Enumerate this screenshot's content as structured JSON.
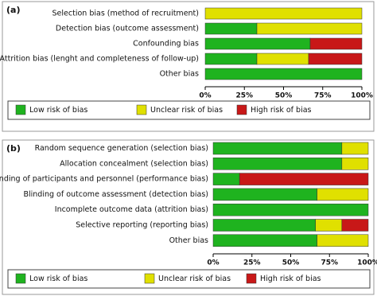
{
  "chart_data": [
    {
      "type": "bar",
      "orientation": "horizontal",
      "stacked": true,
      "label": "(a)",
      "categories": [
        "Selection bias (method of recruitment)",
        "Detection bias (outcome assessment)",
        "Confounding bias",
        "Attrition bias (lenght and completeness of follow-up)",
        "Other bias"
      ],
      "series": [
        {
          "name": "Low risk of bias",
          "color": "#1fb31f",
          "values": [
            0,
            33,
            67,
            33,
            100
          ]
        },
        {
          "name": "Unclear risk of bias",
          "color": "#e0e000",
          "values": [
            100,
            67,
            0,
            33,
            0
          ]
        },
        {
          "name": "High risk of bias",
          "color": "#c81818",
          "values": [
            0,
            0,
            33,
            34,
            0
          ]
        }
      ],
      "xlim": [
        0,
        100
      ],
      "xticks": [
        {
          "value": 0,
          "label": "0%"
        },
        {
          "value": 25,
          "label": "25%"
        },
        {
          "value": 50,
          "label": "50%"
        },
        {
          "value": 75,
          "label": "75%"
        },
        {
          "value": 100,
          "label": "100%"
        }
      ],
      "legend": "bottom"
    },
    {
      "type": "bar",
      "orientation": "horizontal",
      "stacked": true,
      "label": "(b)",
      "categories": [
        "Random sequence generation (selection bias)",
        "Allocation concealment (selection bias)",
        "Blinding of participants and personnel (performance bias)",
        "Blinding of outcome assessment (detection bias)",
        "Incomplete outcome data (attrition bias)",
        "Selective reporting (reporting bias)",
        "Other bias"
      ],
      "series": [
        {
          "name": "Low risk of bias",
          "color": "#1fb31f",
          "values": [
            83,
            83,
            17,
            67,
            100,
            66,
            67
          ]
        },
        {
          "name": "Unclear risk of bias",
          "color": "#e0e000",
          "values": [
            17,
            17,
            0,
            33,
            0,
            17,
            33
          ]
        },
        {
          "name": "High risk of bias",
          "color": "#c81818",
          "values": [
            0,
            0,
            83,
            0,
            0,
            17,
            0
          ]
        }
      ],
      "xlim": [
        0,
        100
      ],
      "xticks": [
        {
          "value": 0,
          "label": "0%"
        },
        {
          "value": 25,
          "label": "25%"
        },
        {
          "value": 50,
          "label": "50%"
        },
        {
          "value": 75,
          "label": "75%"
        },
        {
          "value": 100,
          "label": "100%"
        }
      ],
      "legend": "bottom"
    }
  ]
}
